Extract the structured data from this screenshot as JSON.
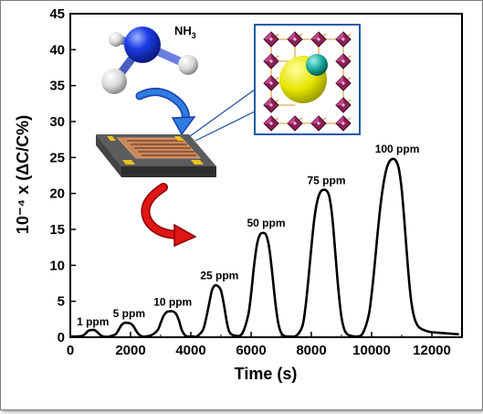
{
  "chart_data": {
    "type": "line",
    "xlabel": "Time (s)",
    "ylabel": "10⁻⁴ x (ΔC/C%)",
    "xlim": [
      0,
      13000
    ],
    "ylim": [
      0,
      45
    ],
    "xticks": [
      0,
      2000,
      4000,
      6000,
      8000,
      10000,
      12000
    ],
    "yticks": [
      0,
      5,
      10,
      15,
      20,
      25,
      30,
      35,
      40,
      45
    ],
    "grid": false,
    "series": [
      {
        "x": [
          0,
          200,
          400,
          500,
          600,
          700,
          800,
          900,
          1000,
          1100,
          1200,
          1300,
          1500,
          1600,
          1700,
          1800,
          1900,
          2000,
          2100,
          2200,
          2300,
          2400,
          2500,
          2700,
          2900,
          3000,
          3100,
          3200,
          3300,
          3400,
          3500,
          3600,
          3700,
          3800,
          3900,
          4000,
          4100,
          4200,
          4400,
          4500,
          4600,
          4700,
          4800,
          4900,
          5000,
          5100,
          5200,
          5300,
          5500,
          5700,
          5900,
          6000,
          6100,
          6200,
          6300,
          6400,
          6500,
          6600,
          6700,
          6800,
          6900,
          7000,
          7100,
          7200,
          7300,
          7500,
          7700,
          7800,
          7900,
          8000,
          8100,
          8200,
          8300,
          8400,
          8500,
          8600,
          8700,
          8800,
          8900,
          9000,
          9100,
          9200,
          9300,
          9500,
          9700,
          9900,
          10000,
          10100,
          10200,
          10300,
          10400,
          10500,
          10600,
          10700,
          10800,
          10900,
          11000,
          11100,
          11200,
          11300,
          11400,
          11500,
          11600,
          11800,
          12000,
          12300,
          12600,
          12900
        ],
        "y": [
          0.1,
          0.1,
          0.2,
          0.5,
          0.9,
          1.0,
          1.0,
          0.7,
          0.3,
          0.1,
          0.05,
          0.1,
          0.4,
          1.0,
          1.7,
          2.0,
          2.0,
          1.9,
          1.5,
          0.8,
          0.3,
          0.1,
          0.1,
          0.3,
          1.0,
          2.0,
          3.0,
          3.5,
          3.6,
          3.6,
          3.3,
          2.4,
          1.0,
          0.3,
          0.1,
          0.1,
          0.1,
          0.1,
          1.0,
          2.5,
          4.5,
          6.5,
          7.2,
          7.1,
          6.5,
          4.5,
          2.0,
          0.6,
          0.2,
          0.5,
          3.0,
          6.0,
          10.0,
          13.0,
          14.3,
          14.5,
          14.2,
          12.5,
          9.0,
          5.0,
          2.0,
          0.6,
          0.2,
          0.1,
          0.1,
          0.2,
          1.5,
          4.0,
          8.0,
          12.5,
          16.5,
          19.0,
          20.2,
          20.5,
          20.4,
          19.5,
          16.5,
          11.5,
          6.5,
          2.8,
          1.0,
          0.4,
          0.2,
          0.1,
          0.5,
          3.0,
          6.0,
          10.0,
          14.5,
          18.5,
          21.5,
          23.5,
          24.5,
          24.8,
          24.6,
          23.5,
          20.5,
          15.5,
          10.0,
          5.5,
          3.0,
          1.8,
          1.3,
          0.9,
          0.7,
          0.6,
          0.5,
          0.4
        ]
      }
    ],
    "annotations": [
      {
        "text": "1 ppm",
        "x": 750,
        "y": 1.3
      },
      {
        "text": "5 ppm",
        "x": 1950,
        "y": 2.4
      },
      {
        "text": "10 ppm",
        "x": 3400,
        "y": 4.0
      },
      {
        "text": "25 ppm",
        "x": 4950,
        "y": 7.7
      },
      {
        "text": "50 ppm",
        "x": 6500,
        "y": 15.0
      },
      {
        "text": "75 ppm",
        "x": 8500,
        "y": 20.9
      },
      {
        "text": "100 ppm",
        "x": 10850,
        "y": 25.3
      }
    ],
    "inset_labels": {
      "molecule": "NH",
      "molecule_sub": "3"
    }
  }
}
